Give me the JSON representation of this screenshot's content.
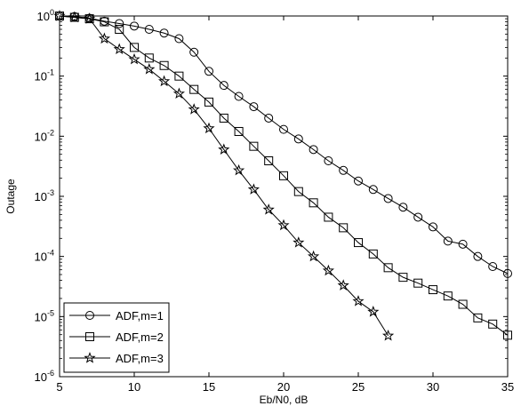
{
  "chart_data": {
    "type": "line",
    "xlabel": "Eb/N0, dB",
    "ylabel": "Outage",
    "xlim": [
      5,
      35
    ],
    "ylim": [
      1e-06,
      1
    ],
    "yscale": "log",
    "grid": false,
    "legend_position": "bottom-left",
    "x_ticks": [
      5,
      10,
      15,
      20,
      25,
      30,
      35
    ],
    "x_tick_labels": [
      "5",
      "10",
      "15",
      "20",
      "25",
      "30",
      "35"
    ],
    "y_ticks": [
      1e-06,
      1e-05,
      0.0001,
      0.001,
      0.01,
      0.1,
      1
    ],
    "y_tick_labels": [
      {
        "base": "10",
        "exp": "-6"
      },
      {
        "base": "10",
        "exp": "-5"
      },
      {
        "base": "10",
        "exp": "-4"
      },
      {
        "base": "10",
        "exp": "-3"
      },
      {
        "base": "10",
        "exp": "-2"
      },
      {
        "base": "10",
        "exp": "-1"
      },
      {
        "base": "10",
        "exp": "0"
      }
    ],
    "series": [
      {
        "name": "ADF,m=1",
        "marker": "circle",
        "x": [
          5,
          6,
          7,
          8,
          9,
          10,
          11,
          12,
          13,
          14,
          15,
          16,
          17,
          18,
          19,
          20,
          21,
          22,
          23,
          24,
          25,
          26,
          27,
          28,
          29,
          30,
          31,
          32,
          33,
          34,
          35
        ],
        "values": [
          1.0,
          0.98,
          0.92,
          0.82,
          0.75,
          0.68,
          0.6,
          0.52,
          0.42,
          0.25,
          0.12,
          0.07,
          0.046,
          0.031,
          0.02,
          0.013,
          0.009,
          0.006,
          0.0039,
          0.0027,
          0.0018,
          0.0013,
          0.00092,
          0.00066,
          0.00045,
          0.00031,
          0.00018,
          0.00016,
          0.0001,
          6.8e-05,
          5.2e-05
        ]
      },
      {
        "name": "ADF,m=2",
        "marker": "square",
        "x": [
          5,
          6,
          7,
          8,
          9,
          10,
          11,
          12,
          13,
          14,
          15,
          16,
          17,
          18,
          19,
          20,
          21,
          22,
          23,
          24,
          25,
          26,
          27,
          28,
          29,
          30,
          31,
          32,
          33,
          34,
          35
        ],
        "values": [
          1.0,
          0.95,
          0.9,
          0.8,
          0.6,
          0.3,
          0.2,
          0.15,
          0.1,
          0.06,
          0.037,
          0.02,
          0.012,
          0.0068,
          0.0039,
          0.0022,
          0.0012,
          0.00078,
          0.00045,
          0.0003,
          0.00017,
          0.00011,
          6.5e-05,
          4.5e-05,
          3.6e-05,
          2.8e-05,
          2.2e-05,
          1.6e-05,
          9.5e-06,
          7.5e-06,
          4.9e-06
        ]
      },
      {
        "name": "ADF,m=3",
        "marker": "star",
        "x": [
          5,
          6,
          7,
          8,
          9,
          10,
          11,
          12,
          13,
          14,
          15,
          16,
          17,
          18,
          19,
          20,
          21,
          22,
          23,
          24,
          25,
          26,
          27
        ],
        "values": [
          1.0,
          0.95,
          0.9,
          0.42,
          0.28,
          0.19,
          0.13,
          0.082,
          0.051,
          0.028,
          0.0135,
          0.006,
          0.0027,
          0.0013,
          0.0006,
          0.00033,
          0.00017,
          0.0001,
          5.8e-05,
          3.3e-05,
          1.8e-05,
          1.2e-05,
          4.8e-06
        ]
      }
    ]
  }
}
